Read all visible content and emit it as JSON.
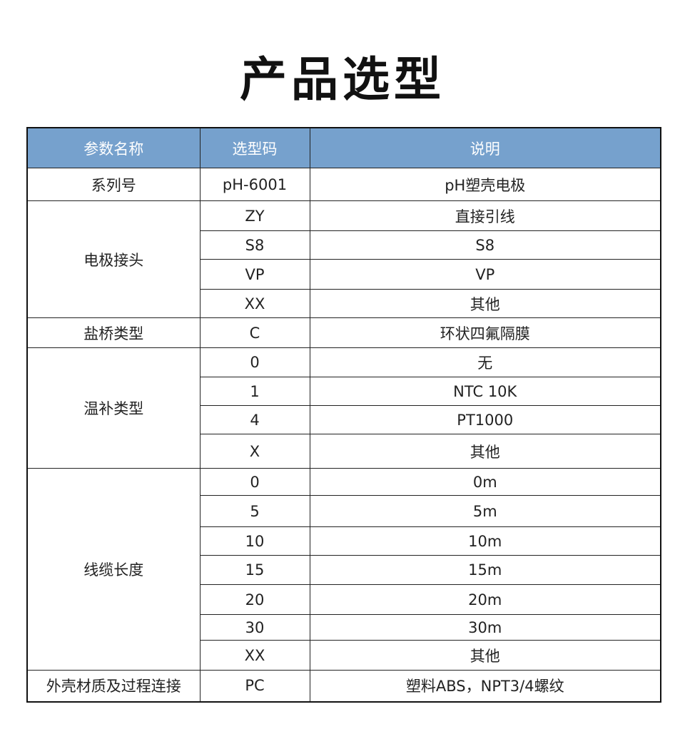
{
  "title": "产品选型",
  "header": {
    "param": "参数名称",
    "code": "选型码",
    "desc": "说明"
  },
  "colors": {
    "header_bg": "#76a1cd",
    "border": "#222222"
  },
  "groups": [
    {
      "name": "系列号",
      "options": [
        {
          "code": "pH-6001",
          "desc": "pH塑壳电极"
        }
      ]
    },
    {
      "name": "电极接头",
      "options": [
        {
          "code": "ZY",
          "desc": "直接引线"
        },
        {
          "code": "S8",
          "desc": "S8"
        },
        {
          "code": "VP",
          "desc": "VP"
        },
        {
          "code": "XX",
          "desc": "其他"
        }
      ]
    },
    {
      "name": "盐桥类型",
      "options": [
        {
          "code": "C",
          "desc": "环状四氟隔膜"
        }
      ]
    },
    {
      "name": "温补类型",
      "options": [
        {
          "code": "0",
          "desc": "无"
        },
        {
          "code": "1",
          "desc": "NTC 10K"
        },
        {
          "code": "4",
          "desc": "PT1000"
        },
        {
          "code": "X",
          "desc": "其他"
        }
      ]
    },
    {
      "name": "线缆长度",
      "options": [
        {
          "code": "0",
          "desc": "0m"
        },
        {
          "code": "5",
          "desc": "5m"
        },
        {
          "code": "10",
          "desc": "10m"
        },
        {
          "code": "15",
          "desc": "15m"
        },
        {
          "code": "20",
          "desc": "20m"
        },
        {
          "code": "30",
          "desc": "30m"
        },
        {
          "code": "XX",
          "desc": "其他"
        }
      ]
    },
    {
      "name": "外壳材质及过程连接",
      "options": [
        {
          "code": "PC",
          "desc": "塑料ABS，NPT3/4螺纹"
        }
      ]
    }
  ]
}
